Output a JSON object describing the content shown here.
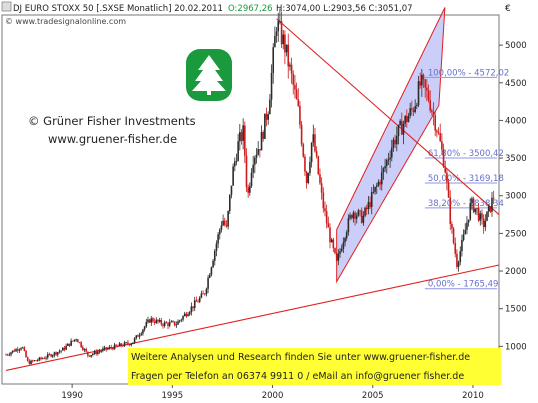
{
  "header": {
    "title": "DJ EURO STOXX 50 [.SXSE Monatlich] 20.02.2011",
    "ohlc_open": "O:2967,26",
    "ohlc_rest": "H:3074,00 L:2903,56 C:3051,07",
    "source": "© www.tradesignalonline.com",
    "currency": "€"
  },
  "watermark": {
    "company": "© Grüner Fisher Investments",
    "website": "www.gruener-fisher.de",
    "logo_icon": "tree-logo-icon"
  },
  "footer": {
    "line1": "Weitere Analysen und Research finden Sie unter www.gruener-fisher.de",
    "line2": "Fragen per Telefon an 06374 9911 0 / eMail an info@gruener fisher.de"
  },
  "colors": {
    "up_candle": "#2b2b2b",
    "down_candle": "#cc1a1a",
    "trend_line": "#e02020",
    "channel_fill": "#b8bdf5",
    "fib_line": "#8c96e6",
    "footer_bg": "#ffff33",
    "logo_green": "#1a9a3c"
  },
  "chart_data": {
    "type": "line",
    "xlim": [
      1986.5,
      2011.3
    ],
    "ylim": [
      500,
      5400
    ],
    "y_ticks": [
      "1000",
      "1500",
      "2000",
      "2500",
      "3000",
      "3500",
      "4000",
      "4500",
      "5000"
    ],
    "x_ticks": [
      "1990",
      "1995",
      "2000",
      "2005",
      "2010"
    ],
    "series": [
      {
        "x": [
          1986.7,
          1987.5,
          1987.8,
          1988.5,
          1989.5,
          1990.2,
          1990.8,
          1991.5,
          1992.5,
          1993.0,
          1993.9,
          1994.5,
          1995.2,
          1996.0,
          1996.6,
          1997.0,
          1997.5,
          1997.7,
          1998.0,
          1998.3,
          1998.55,
          1998.75,
          1999.0,
          1999.4,
          1999.8,
          2000.2,
          2000.6,
          2001.0,
          2001.3,
          2001.7,
          2002.0,
          2002.5,
          2002.9,
          2003.2,
          2003.6,
          2004.0,
          2004.5,
          2005.0,
          2005.5,
          2006.0,
          2006.5,
          2007.0,
          2007.4,
          2007.8,
          2008.2,
          2008.6,
          2008.9,
          2009.2,
          2009.5,
          2009.9,
          2010.2,
          2010.5,
          2010.8,
          2011.1
        ],
        "values": [
          890,
          1000,
          780,
          840,
          950,
          1110,
          880,
          950,
          1020,
          1050,
          1360,
          1300,
          1300,
          1530,
          1700,
          2150,
          2700,
          2550,
          3300,
          3700,
          3850,
          2950,
          3500,
          3700,
          4200,
          5300,
          5000,
          4500,
          4100,
          3200,
          3800,
          2900,
          2400,
          2100,
          2500,
          2800,
          2700,
          3000,
          3300,
          3700,
          3950,
          4150,
          4500,
          4300,
          3900,
          3400,
          2600,
          2100,
          2400,
          2900,
          2800,
          2600,
          2800,
          3050
        ]
      }
    ],
    "annotations": {
      "fib_levels": [
        {
          "label": "100,00% - 4572,02",
          "value": 4572.02
        },
        {
          "label": "61,80% - 3500,42",
          "value": 3500.42
        },
        {
          "label": "50,00% - 3169,18",
          "value": 3169.18
        },
        {
          "label": "38,20% - 2838,34",
          "value": 2838.34
        },
        {
          "label": "0,00% - 1765,49",
          "value": 1765.49
        }
      ],
      "long_term_support": {
        "from": [
          1986.7,
          680
        ],
        "to": [
          2011.3,
          2080
        ]
      },
      "downtrend_line": {
        "from": [
          2000.2,
          5350
        ],
        "to": [
          2011.3,
          2750
        ]
      },
      "channel_lower": {
        "from": [
          2003.2,
          1860
        ],
        "to": [
          2008.3,
          4200
        ]
      },
      "channel_upper": {
        "from": [
          2003.2,
          2550
        ],
        "to": [
          2008.6,
          5500
        ]
      }
    }
  }
}
